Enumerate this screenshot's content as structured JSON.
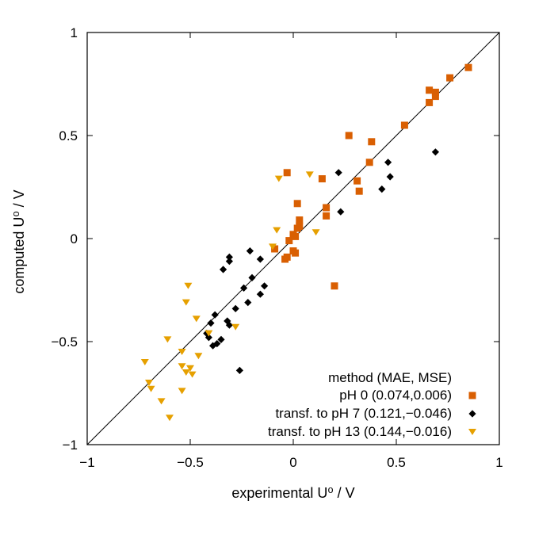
{
  "chart_data": {
    "type": "scatter",
    "xlabel": "experimental U⁰ / V",
    "ylabel": "computed U⁰ / V",
    "xlim": [
      -1,
      1
    ],
    "ylim": [
      -1,
      1
    ],
    "xticks": [
      -1,
      -0.5,
      0,
      0.5,
      1
    ],
    "yticks": [
      -1,
      -0.5,
      0,
      0.5,
      1
    ],
    "xtick_labels": [
      "−1",
      "−0.5",
      "0",
      "0.5",
      "1"
    ],
    "ytick_labels": [
      "−1",
      "−0.5",
      "0",
      "0.5",
      "1"
    ],
    "grid": false,
    "diagonal_line": true,
    "legend_position": "bottom-right",
    "legend_title": "method (MAE, MSE)",
    "series": [
      {
        "name": "pH 0 (0.074,0.006)",
        "marker": "square",
        "color": "#d95f02",
        "points": [
          [
            0.85,
            0.83
          ],
          [
            0.76,
            0.78
          ],
          [
            0.69,
            0.71
          ],
          [
            0.66,
            0.72
          ],
          [
            0.69,
            0.69
          ],
          [
            0.66,
            0.66
          ],
          [
            0.54,
            0.55
          ],
          [
            0.38,
            0.47
          ],
          [
            0.27,
            0.5
          ],
          [
            0.37,
            0.37
          ],
          [
            0.31,
            0.28
          ],
          [
            0.32,
            0.23
          ],
          [
            0.14,
            0.29
          ],
          [
            0.16,
            0.15
          ],
          [
            0.16,
            0.11
          ],
          [
            0.02,
            0.17
          ],
          [
            0.03,
            0.09
          ],
          [
            0.03,
            0.06
          ],
          [
            0.02,
            0.05
          ],
          [
            -0.03,
            0.32
          ],
          [
            0.0,
            0.02
          ],
          [
            -0.02,
            -0.01
          ],
          [
            0.01,
            0.01
          ],
          [
            0.0,
            -0.06
          ],
          [
            0.01,
            -0.07
          ],
          [
            -0.04,
            -0.1
          ],
          [
            -0.03,
            -0.09
          ],
          [
            -0.09,
            -0.05
          ],
          [
            0.2,
            -0.23
          ]
        ]
      },
      {
        "name": "transf. to pH 7 (0.121,−0.046)",
        "marker": "diamond",
        "color": "#000000",
        "points": [
          [
            0.69,
            0.42
          ],
          [
            0.46,
            0.37
          ],
          [
            0.47,
            0.3
          ],
          [
            0.43,
            0.24
          ],
          [
            0.22,
            0.32
          ],
          [
            0.23,
            0.13
          ],
          [
            -0.31,
            -0.09
          ],
          [
            -0.31,
            -0.11
          ],
          [
            -0.34,
            -0.15
          ],
          [
            -0.21,
            -0.06
          ],
          [
            -0.16,
            -0.1
          ],
          [
            -0.2,
            -0.19
          ],
          [
            -0.24,
            -0.24
          ],
          [
            -0.14,
            -0.23
          ],
          [
            -0.16,
            -0.27
          ],
          [
            -0.22,
            -0.31
          ],
          [
            -0.28,
            -0.34
          ],
          [
            -0.38,
            -0.37
          ],
          [
            -0.32,
            -0.4
          ],
          [
            -0.4,
            -0.41
          ],
          [
            -0.31,
            -0.42
          ],
          [
            -0.42,
            -0.46
          ],
          [
            -0.41,
            -0.48
          ],
          [
            -0.35,
            -0.49
          ],
          [
            -0.37,
            -0.51
          ],
          [
            -0.39,
            -0.52
          ],
          [
            -0.26,
            -0.64
          ]
        ]
      },
      {
        "name": "transf. to pH 13 (0.144,−0.016)",
        "marker": "triangle-down",
        "color": "#e6a000",
        "points": [
          [
            0.08,
            0.31
          ],
          [
            -0.07,
            0.29
          ],
          [
            0.11,
            0.03
          ],
          [
            -0.08,
            0.04
          ],
          [
            -0.1,
            -0.04
          ],
          [
            -0.51,
            -0.23
          ],
          [
            -0.52,
            -0.31
          ],
          [
            -0.47,
            -0.39
          ],
          [
            -0.28,
            -0.43
          ],
          [
            -0.41,
            -0.46
          ],
          [
            -0.61,
            -0.49
          ],
          [
            -0.54,
            -0.55
          ],
          [
            -0.46,
            -0.57
          ],
          [
            -0.72,
            -0.6
          ],
          [
            -0.5,
            -0.63
          ],
          [
            -0.54,
            -0.62
          ],
          [
            -0.52,
            -0.65
          ],
          [
            -0.49,
            -0.66
          ],
          [
            -0.7,
            -0.7
          ],
          [
            -0.69,
            -0.73
          ],
          [
            -0.54,
            -0.74
          ],
          [
            -0.64,
            -0.79
          ],
          [
            -0.6,
            -0.87
          ]
        ]
      }
    ]
  }
}
